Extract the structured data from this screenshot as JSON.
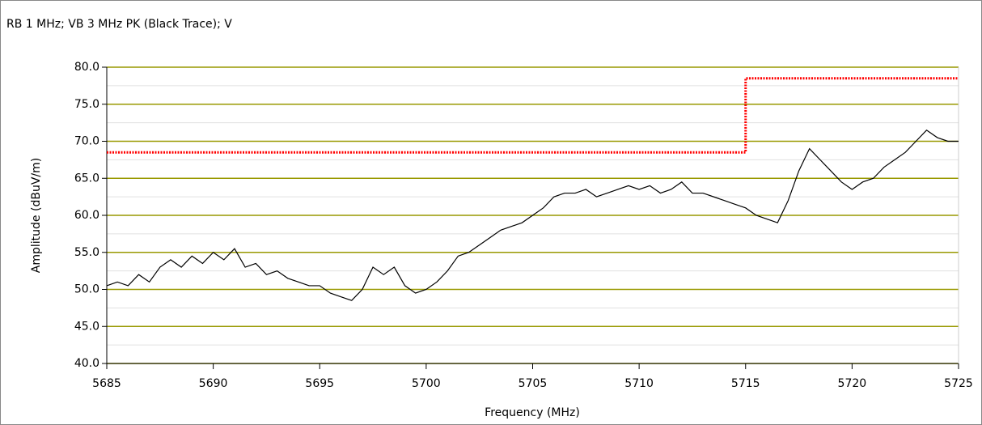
{
  "chart_data": {
    "type": "line",
    "title": "RB 1 MHz; VB 3 MHz PK (Black Trace); V",
    "xlabel": "Frequency (MHz)",
    "ylabel": "Amplitude (dBuV/m)",
    "xlim": [
      5685,
      5725
    ],
    "xticks": [
      5685,
      5690,
      5695,
      5700,
      5705,
      5710,
      5715,
      5720,
      5725
    ],
    "ylim": [
      40,
      80
    ],
    "yticks": [
      {
        "value": 40,
        "label": "40.0"
      },
      {
        "value": 45,
        "label": "45.0"
      },
      {
        "value": 50,
        "label": "50.0"
      },
      {
        "value": 55,
        "label": "55.0"
      },
      {
        "value": 60,
        "label": "60.0"
      },
      {
        "value": 65,
        "label": "65.0"
      },
      {
        "value": 70,
        "label": "70.0"
      },
      {
        "value": 75,
        "label": "75.0"
      },
      {
        "value": 80,
        "label": "80.0"
      }
    ],
    "minor_yticks": [
      42.5,
      47.5,
      52.5,
      57.5,
      62.5,
      67.5,
      72.5,
      77.5
    ],
    "grid": true,
    "grid_color": "#999900",
    "minor_grid_color": "#e0e0e0",
    "series": [
      {
        "color": "#000000",
        "dash": false,
        "x": [
          5685,
          5685.5,
          5686,
          5686.5,
          5687,
          5687.5,
          5688,
          5688.5,
          5689,
          5689.5,
          5690,
          5690.5,
          5691,
          5691.5,
          5692,
          5692.5,
          5693,
          5693.5,
          5694,
          5694.5,
          5695,
          5695.5,
          5696,
          5696.5,
          5697,
          5697.5,
          5698,
          5698.5,
          5699,
          5699.5,
          5700,
          5700.5,
          5701,
          5701.5,
          5702,
          5702.5,
          5703,
          5703.5,
          5704,
          5704.5,
          5705,
          5705.5,
          5706,
          5706.5,
          5707,
          5707.5,
          5708,
          5708.5,
          5709,
          5709.5,
          5710,
          5710.5,
          5711,
          5711.5,
          5712,
          5712.5,
          5713,
          5713.5,
          5714,
          5714.5,
          5715,
          5715.5,
          5716,
          5716.5,
          5717,
          5717.5,
          5718,
          5718.5,
          5719,
          5719.5,
          5720,
          5720.5,
          5721,
          5721.5,
          5722,
          5722.5,
          5723,
          5723.5,
          5724,
          5724.5,
          5725
        ],
        "values": [
          50.5,
          51,
          50.5,
          52,
          51,
          53,
          54,
          53,
          54.5,
          53.5,
          55,
          54,
          55.5,
          53,
          53.5,
          52,
          52.5,
          51.5,
          51,
          50.5,
          50.5,
          49.5,
          49,
          48.5,
          50,
          53,
          52,
          53,
          50.5,
          49.5,
          50,
          51,
          52.5,
          54.5,
          55,
          56,
          57,
          58,
          58.5,
          59,
          60,
          61,
          62.5,
          63,
          63,
          63.5,
          62.5,
          63,
          63.5,
          64,
          63.5,
          64,
          63,
          63.5,
          64.5,
          63,
          63,
          62.5,
          62,
          61.5,
          61,
          60,
          59.5,
          59,
          62,
          66,
          69,
          67.5,
          66,
          64.5,
          63.5,
          64.5,
          65,
          66.5,
          67.5,
          68.5,
          70,
          71.5,
          70.5,
          70,
          70
        ]
      },
      {
        "color": "#ff0000",
        "dash": true,
        "x": [
          5685,
          5715,
          5715,
          5725
        ],
        "values": [
          68.5,
          68.5,
          78.5,
          78.5
        ]
      }
    ]
  }
}
